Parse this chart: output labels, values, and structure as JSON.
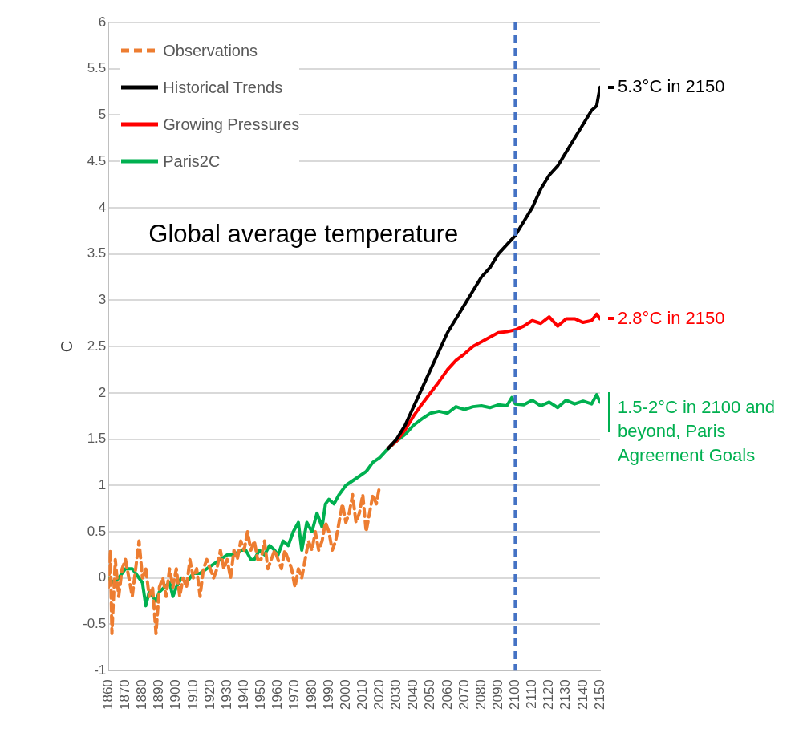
{
  "chart_data": {
    "type": "line",
    "ylabel": "C",
    "xlim": [
      1860,
      2150
    ],
    "xticks": [
      1860,
      1870,
      1880,
      1890,
      1900,
      1910,
      1920,
      1930,
      1940,
      1950,
      1960,
      1970,
      1980,
      1990,
      2000,
      2010,
      2020,
      2030,
      2040,
      2050,
      2060,
      2070,
      2080,
      2090,
      2100,
      2110,
      2120,
      2130,
      2140,
      2150
    ],
    "ylim": [
      -1,
      6
    ],
    "yticks": [
      -1,
      -0.5,
      0,
      0.5,
      1,
      1.5,
      2,
      2.5,
      3,
      3.5,
      4,
      4.5,
      5,
      5.5,
      6
    ],
    "grid": "y",
    "legend": "top left",
    "marker": "none",
    "annotations": [
      "Global average temperature",
      {
        "text": "5.3°C in 2150",
        "x": 2150,
        "y": 5.3
      },
      {
        "text": "2.8°C in 2150",
        "x": 2150,
        "y": 2.8
      },
      "1.5-2°C in 2100 and beyond, Paris Agreement Goals"
    ],
    "ref_lines": [
      {
        "axis": "x",
        "value": 2100,
        "color": "#4472c4",
        "line_style": "dashed"
      }
    ],
    "series": [
      {
        "name": "Observations",
        "color": "#ed7d31",
        "line_style": "dashed",
        "x": [
          1860,
          1861,
          1862,
          1864,
          1866,
          1868,
          1870,
          1872,
          1874,
          1876,
          1878,
          1880,
          1882,
          1884,
          1886,
          1888,
          1890,
          1892,
          1894,
          1896,
          1898,
          1900,
          1902,
          1904,
          1906,
          1908,
          1910,
          1912,
          1914,
          1916,
          1918,
          1920,
          1922,
          1924,
          1926,
          1928,
          1930,
          1932,
          1934,
          1936,
          1938,
          1940,
          1942,
          1944,
          1946,
          1948,
          1950,
          1952,
          1954,
          1956,
          1958,
          1960,
          1962,
          1964,
          1966,
          1968,
          1970,
          1972,
          1974,
          1976,
          1978,
          1980,
          1982,
          1984,
          1986,
          1988,
          1990,
          1992,
          1994,
          1996,
          1998,
          2000,
          2002,
          2004,
          2006,
          2008,
          2010,
          2012,
          2014,
          2016,
          2018,
          2020
        ],
        "values": [
          -0.1,
          0.3,
          -0.6,
          0.2,
          -0.2,
          0.1,
          0.2,
          0,
          -0.2,
          0.1,
          0.4,
          0,
          0.1,
          -0.2,
          -0.1,
          -0.6,
          -0.1,
          0,
          -0.2,
          0.1,
          -0.1,
          0.1,
          -0.2,
          0,
          -0.1,
          0.2,
          0,
          0.1,
          -0.2,
          0.1,
          0.2,
          0.1,
          0,
          0.1,
          0.3,
          0.1,
          0.2,
          0,
          0.3,
          0.2,
          0.4,
          0.3,
          0.5,
          0.3,
          0.4,
          0.2,
          0.2,
          0.4,
          0.1,
          0.2,
          0.3,
          0.2,
          0.1,
          0.3,
          0.2,
          0.1,
          -0.1,
          0.1,
          0,
          0.2,
          0.4,
          0.3,
          0.5,
          0.3,
          0.4,
          0.6,
          0.5,
          0.3,
          0.4,
          0.6,
          0.8,
          0.6,
          0.7,
          0.9,
          0.6,
          0.7,
          0.9,
          0.5,
          0.7,
          0.9,
          0.8,
          1
        ]
      },
      {
        "name": "Historical Trends",
        "color": "#000000",
        "x": [
          2025,
          2030,
          2035,
          2040,
          2045,
          2050,
          2055,
          2060,
          2065,
          2070,
          2075,
          2080,
          2085,
          2090,
          2095,
          2100,
          2105,
          2110,
          2115,
          2120,
          2125,
          2130,
          2135,
          2140,
          2145,
          2148,
          2150
        ],
        "values": [
          1.4,
          1.5,
          1.65,
          1.85,
          2.05,
          2.25,
          2.45,
          2.65,
          2.8,
          2.95,
          3.1,
          3.25,
          3.35,
          3.5,
          3.6,
          3.7,
          3.85,
          4.0,
          4.2,
          4.35,
          4.45,
          4.6,
          4.75,
          4.9,
          5.05,
          5.1,
          5.3
        ]
      },
      {
        "name": "Growing Pressures",
        "color": "#ff0000",
        "x": [
          2025,
          2030,
          2035,
          2040,
          2045,
          2050,
          2055,
          2060,
          2065,
          2070,
          2075,
          2080,
          2085,
          2090,
          2095,
          2100,
          2105,
          2110,
          2115,
          2120,
          2125,
          2130,
          2135,
          2140,
          2145,
          2148,
          2150
        ],
        "values": [
          1.4,
          1.48,
          1.6,
          1.75,
          1.88,
          2.0,
          2.12,
          2.25,
          2.35,
          2.42,
          2.5,
          2.55,
          2.6,
          2.65,
          2.66,
          2.68,
          2.72,
          2.78,
          2.75,
          2.82,
          2.72,
          2.8,
          2.8,
          2.76,
          2.78,
          2.85,
          2.8
        ]
      },
      {
        "name": "Paris2C",
        "color": "#00b050",
        "x": [
          1860,
          1863,
          1866,
          1870,
          1874,
          1878,
          1880,
          1882,
          1884,
          1886,
          1888,
          1890,
          1893,
          1896,
          1898,
          1900,
          1903,
          1906,
          1910,
          1914,
          1918,
          1922,
          1926,
          1930,
          1934,
          1938,
          1941,
          1944,
          1946,
          1949,
          1952,
          1955,
          1958,
          1960,
          1963,
          1966,
          1969,
          1972,
          1974,
          1977,
          1980,
          1983,
          1986,
          1988,
          1990,
          1993,
          1996,
          2000,
          2004,
          2008,
          2012,
          2016,
          2020,
          2024,
          2030,
          2035,
          2040,
          2045,
          2050,
          2055,
          2060,
          2065,
          2070,
          2075,
          2080,
          2085,
          2090,
          2095,
          2098,
          2100,
          2105,
          2110,
          2115,
          2120,
          2125,
          2130,
          2135,
          2140,
          2145,
          2148,
          2150
        ],
        "values": [
          0,
          -0.05,
          0,
          0.1,
          0.1,
          0,
          -0.05,
          -0.3,
          -0.15,
          -0.2,
          -0.25,
          -0.15,
          -0.1,
          -0.05,
          -0.2,
          -0.1,
          0,
          -0.05,
          0.05,
          0.05,
          0.1,
          0.15,
          0.2,
          0.25,
          0.25,
          0.3,
          0.3,
          0.2,
          0.2,
          0.3,
          0.25,
          0.35,
          0.3,
          0.25,
          0.4,
          0.35,
          0.5,
          0.6,
          0.3,
          0.6,
          0.5,
          0.7,
          0.55,
          0.8,
          0.85,
          0.8,
          0.9,
          1,
          1.05,
          1.1,
          1.15,
          1.25,
          1.3,
          1.38,
          1.48,
          1.55,
          1.65,
          1.72,
          1.78,
          1.8,
          1.78,
          1.85,
          1.82,
          1.85,
          1.86,
          1.84,
          1.87,
          1.86,
          1.95,
          1.88,
          1.87,
          1.92,
          1.86,
          1.9,
          1.84,
          1.92,
          1.88,
          1.91,
          1.88,
          1.98,
          1.9
        ]
      }
    ]
  }
}
